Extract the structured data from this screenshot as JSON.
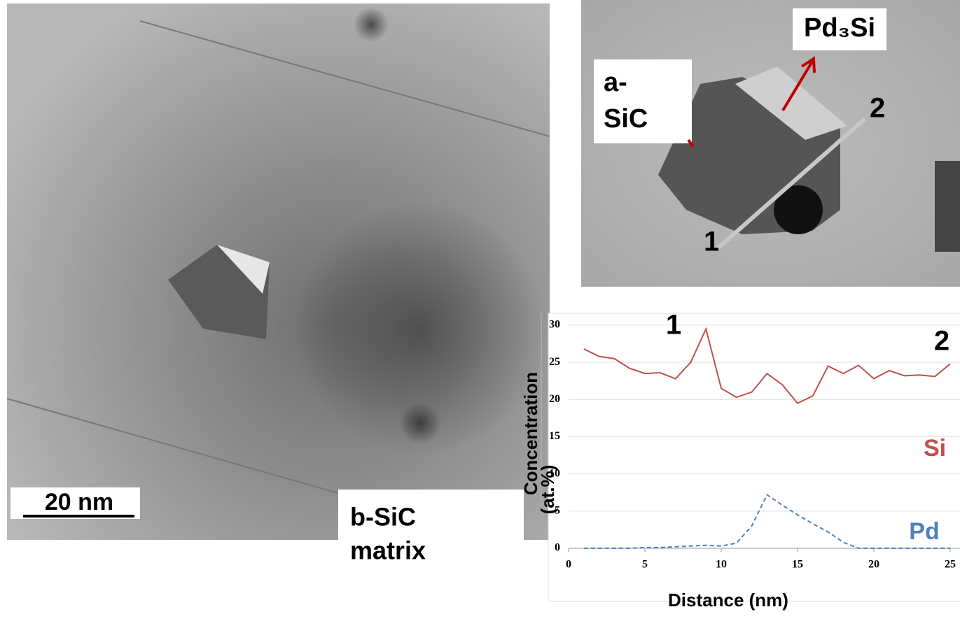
{
  "chart_data": {
    "type": "line",
    "x_label": "Distance (nm)",
    "y_label": [
      "Concentration",
      "(at.%)"
    ],
    "x": [
      1,
      2,
      3,
      4,
      5,
      6,
      7,
      8,
      9,
      10,
      11,
      12,
      13,
      14,
      15,
      16,
      17,
      18,
      19,
      20,
      21,
      22,
      23,
      24,
      25
    ],
    "series": [
      {
        "name": "Si",
        "color": "#c0504d",
        "dash": false,
        "values": [
          26.8,
          25.8,
          25.5,
          24.2,
          23.5,
          23.6,
          22.8,
          25,
          29.5,
          21.5,
          20.3,
          21,
          23.5,
          22,
          19.5,
          20.5,
          24.5,
          23.5,
          24.6,
          22.8,
          23.9,
          23.2,
          23.3,
          23.1,
          24.8
        ]
      },
      {
        "name": "Pd",
        "color": "#4f81bd",
        "dash": true,
        "values": [
          0,
          0,
          0,
          0,
          0.1,
          0.1,
          0.2,
          0.3,
          0.4,
          0.3,
          0.7,
          3,
          7.2,
          5.8,
          4.5,
          3.3,
          2.2,
          0.8,
          0,
          0,
          0,
          0,
          0,
          0,
          0
        ]
      }
    ],
    "xlim": [
      0,
      25
    ],
    "xticks": [
      0,
      5,
      10,
      15,
      20,
      25
    ],
    "ylim": [
      0,
      30
    ],
    "yticks": [
      0,
      5,
      10,
      15,
      20,
      25,
      30
    ],
    "grid": true,
    "annotations": [
      "1",
      "2"
    ]
  },
  "image_labels": {
    "scale_bar": "20 nm",
    "matrix": [
      "b-SiC",
      "matrix"
    ],
    "amorphous": [
      "a-",
      "SiC"
    ],
    "precipitate": "Pd₃Si",
    "point_1": "1",
    "point_2": "2"
  }
}
